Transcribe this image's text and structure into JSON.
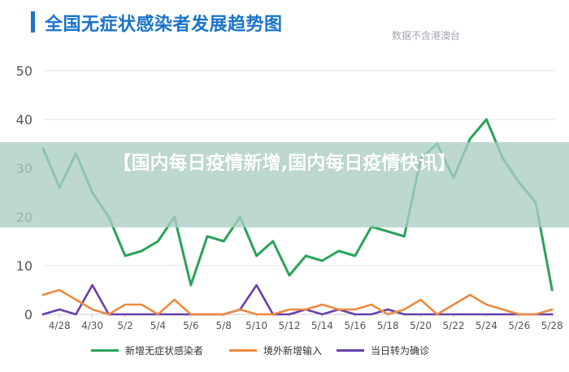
{
  "title": "全国无症状感染者发展趋势图",
  "source_note": "数据不含港澳台",
  "banner_text": "【国内每日疫情新增,国内每日疫情快讯】",
  "colors": {
    "title": "#1a74c8",
    "grid": "#e3e6ea",
    "axis_text": "#555555",
    "series_green": "#2aa35a",
    "series_orange": "#ec8a40",
    "series_purple": "#6a3fa8"
  },
  "chart_data": {
    "type": "line",
    "title": "全国无症状感染者发展趋势图",
    "xlabel": "",
    "ylabel": "",
    "ylim": [
      0,
      50
    ],
    "yticks": [
      0,
      10,
      20,
      30,
      40,
      50
    ],
    "grid": true,
    "legend_position": "bottom",
    "x": [
      "4/27",
      "4/28",
      "4/29",
      "4/30",
      "5/1",
      "5/2",
      "5/3",
      "5/4",
      "5/5",
      "5/6",
      "5/7",
      "5/8",
      "5/9",
      "5/10",
      "5/11",
      "5/12",
      "5/13",
      "5/14",
      "5/15",
      "5/16",
      "5/17",
      "5/18",
      "5/19",
      "5/20",
      "5/21",
      "5/22",
      "5/23",
      "5/24",
      "5/25",
      "5/26",
      "5/27",
      "5/28"
    ],
    "xtick_labels": [
      "4/28",
      "4/30",
      "5/2",
      "5/4",
      "5/6",
      "5/8",
      "5/10",
      "5/12",
      "5/14",
      "5/16",
      "5/18",
      "5/20",
      "5/22",
      "5/24",
      "5/26",
      "5/28"
    ],
    "series": [
      {
        "name": "新增无症状感染者",
        "color": "#2aa35a",
        "values": [
          34,
          26,
          33,
          25,
          20,
          12,
          13,
          15,
          20,
          6,
          16,
          15,
          20,
          12,
          15,
          8,
          12,
          11,
          13,
          12,
          18,
          17,
          16,
          32,
          35,
          28,
          36,
          40,
          32,
          27,
          23,
          5
        ]
      },
      {
        "name": "境外新增输入",
        "color": "#ec8a40",
        "values": [
          4,
          5,
          3,
          1,
          0,
          2,
          2,
          0,
          3,
          0,
          0,
          0,
          1,
          0,
          0,
          1,
          1,
          2,
          1,
          1,
          2,
          0,
          1,
          3,
          0,
          2,
          4,
          2,
          1,
          0,
          0,
          1
        ]
      },
      {
        "name": "当日转为确诊",
        "color": "#6a3fa8",
        "values": [
          0,
          1,
          0,
          6,
          0,
          0,
          0,
          0,
          0,
          0,
          0,
          0,
          1,
          6,
          0,
          0,
          1,
          0,
          1,
          0,
          0,
          1,
          0,
          0,
          0,
          0,
          0,
          0,
          0,
          0,
          0,
          0
        ]
      }
    ]
  }
}
